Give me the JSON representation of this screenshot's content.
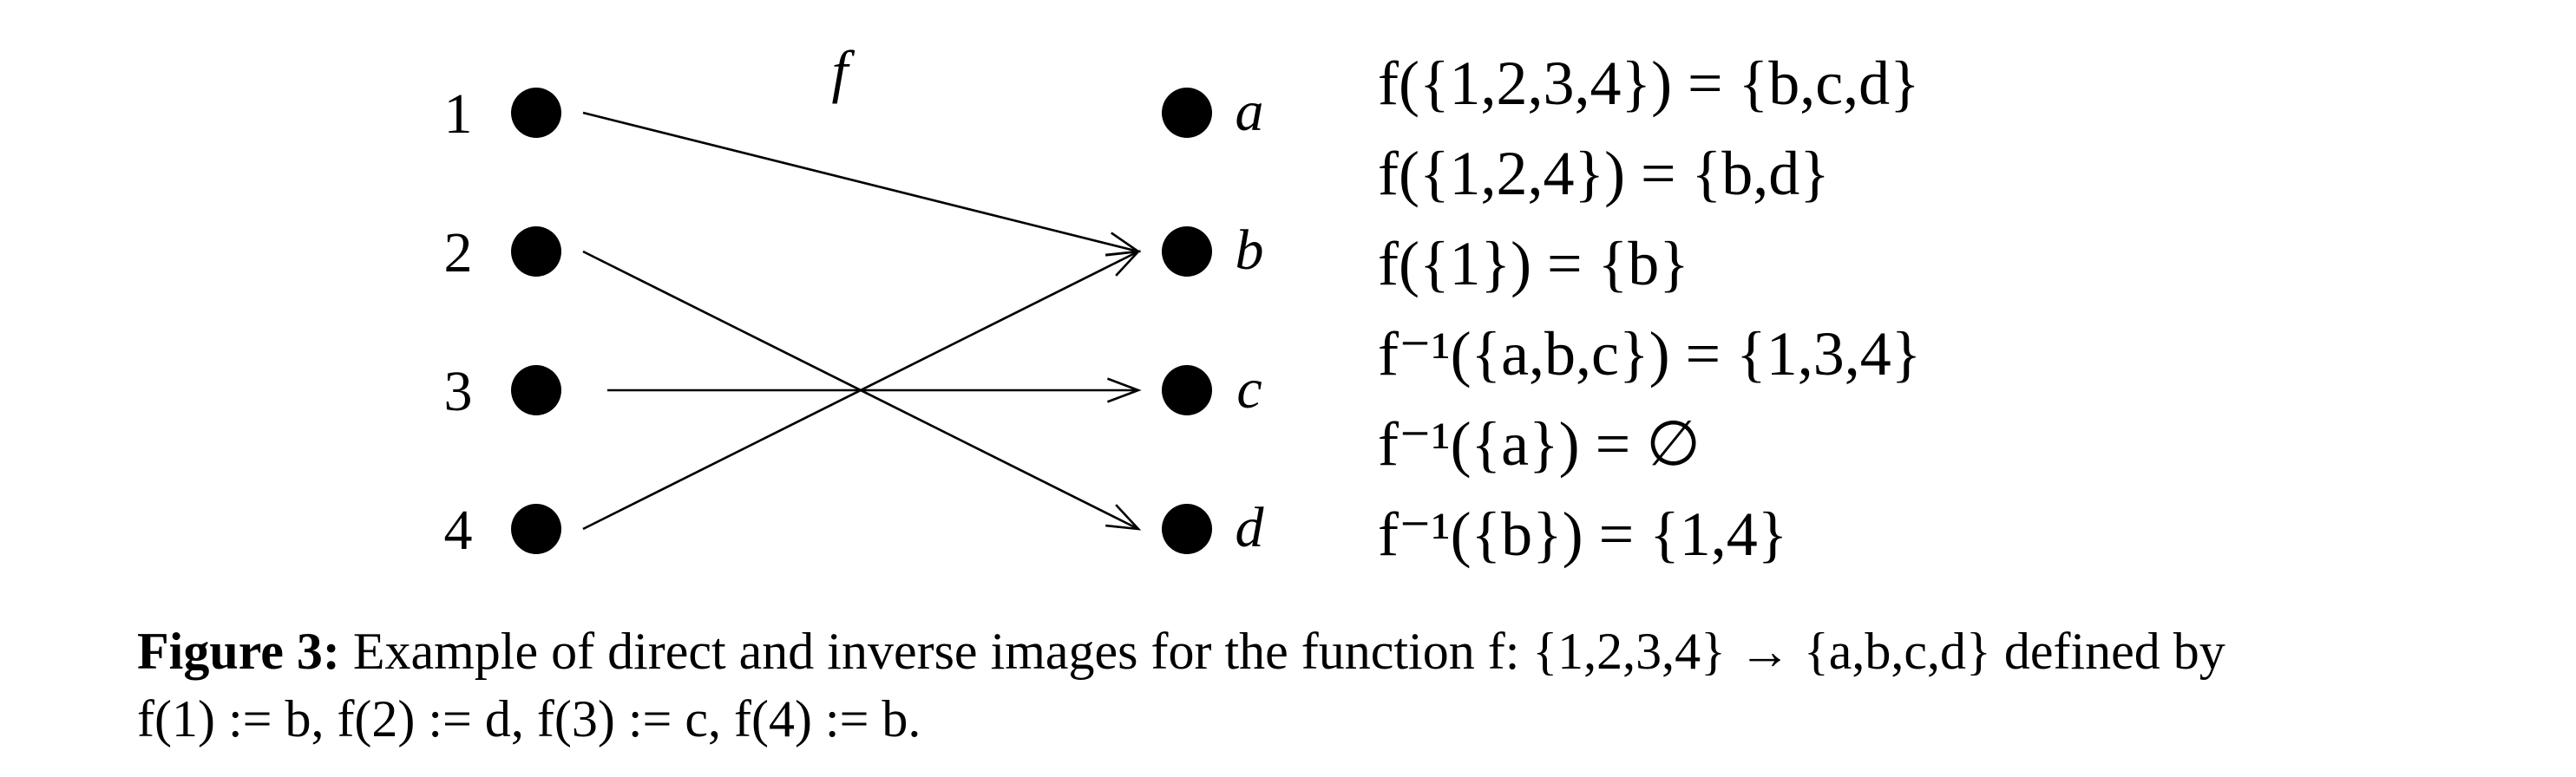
{
  "diagram": {
    "function_label": "f",
    "domain": [
      "1",
      "2",
      "3",
      "4"
    ],
    "codomain": [
      "a",
      "b",
      "c",
      "d"
    ],
    "mapping": [
      {
        "from": "1",
        "to": "b"
      },
      {
        "from": "2",
        "to": "d"
      },
      {
        "from": "3",
        "to": "c"
      },
      {
        "from": "4",
        "to": "b"
      }
    ]
  },
  "equations": [
    "f({1,2,3,4}) = {b,c,d}",
    "f({1,2,4}) = {b,d}",
    "f({1}) = {b}",
    "f⁻¹({a,b,c}) = {1,3,4}",
    "f⁻¹({a}) = ∅",
    "f⁻¹({b}) = {1,4}"
  ],
  "caption": {
    "label": "Figure 3:",
    "line1": "Example of direct and inverse images for the function f: {1,2,3,4} → {a,b,c,d} defined by",
    "line2": "f(1) := b, f(2) := d, f(3) := c, f(4) := b."
  }
}
